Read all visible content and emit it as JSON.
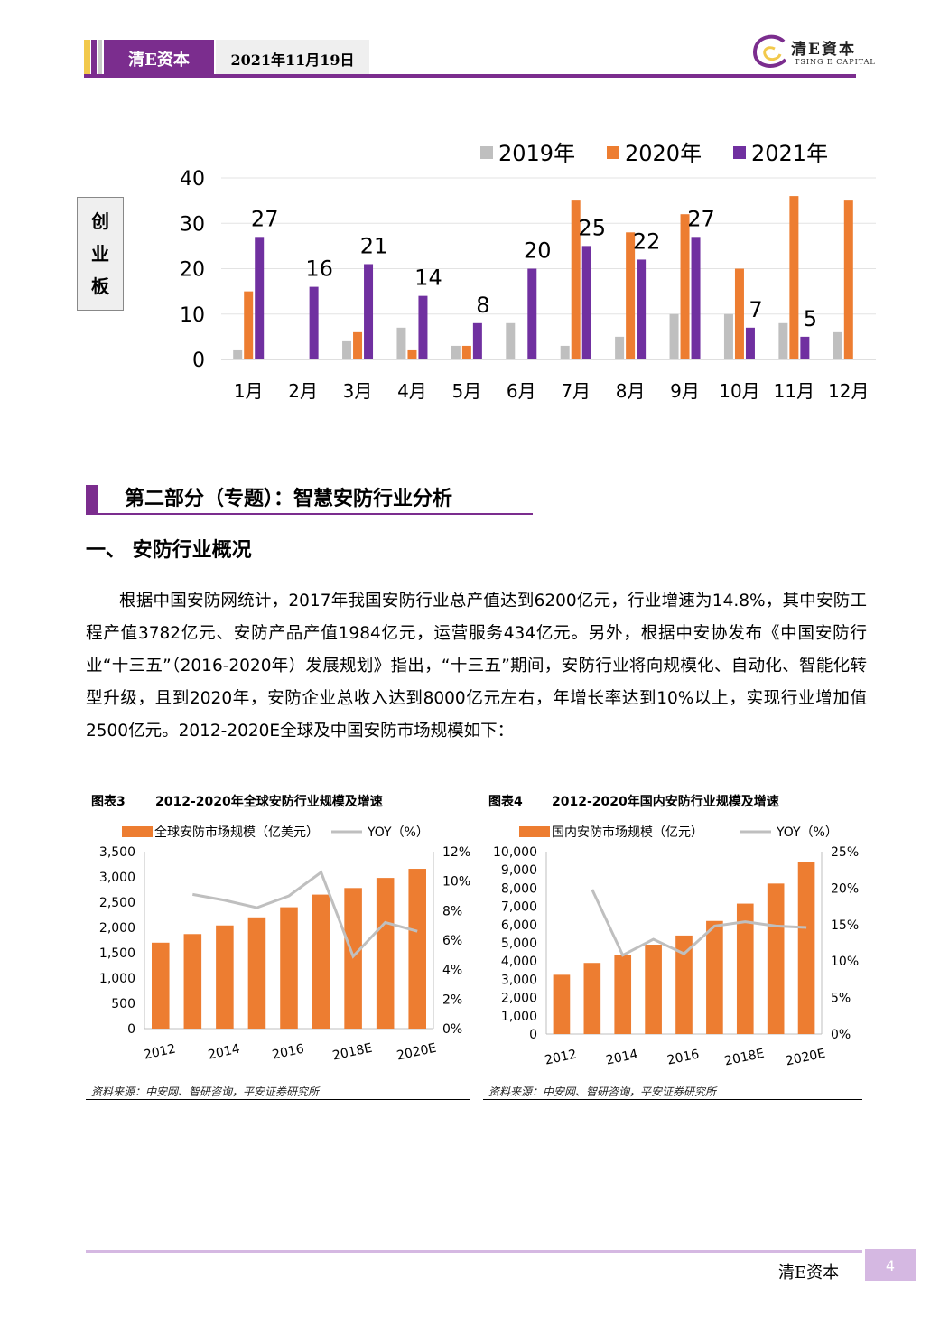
{
  "header": {
    "brand": "清E资本",
    "date": "2021年11月19日",
    "logo_cn": "清E資本",
    "logo_en": "TSING E CAPITAL"
  },
  "top_chart": {
    "side_label": [
      "创",
      "业",
      "板"
    ],
    "chart_data": {
      "type": "bar",
      "categories": [
        "1月",
        "2月",
        "3月",
        "4月",
        "5月",
        "6月",
        "7月",
        "8月",
        "9月",
        "10月",
        "11月",
        "12月"
      ],
      "series": [
        {
          "name": "2019年",
          "color": "#bfbfbf",
          "values": [
            2,
            0,
            4,
            7,
            3,
            8,
            3,
            5,
            10,
            10,
            8,
            6
          ]
        },
        {
          "name": "2020年",
          "color": "#ed7d31",
          "values": [
            15,
            0,
            6,
            2,
            3,
            0,
            35,
            28,
            32,
            20,
            36,
            35
          ]
        },
        {
          "name": "2021年",
          "color": "#7030a0",
          "values": [
            27,
            16,
            21,
            14,
            8,
            20,
            25,
            22,
            27,
            7,
            5,
            null
          ]
        }
      ],
      "data_labels_series": "2021年",
      "yticks": [
        0,
        10,
        20,
        30,
        40
      ],
      "ylim": [
        0,
        40
      ],
      "legend": "top-right",
      "grid": true
    }
  },
  "section": {
    "title": "第二部分（专题）：智慧安防行业分析",
    "subtitle": "一、  安防行业概况",
    "paragraph": "根据中国安防网统计，2017年我国安防行业总产值达到6200亿元，行业增速为14.8%，其中安防工程产值3782亿元、安防产品产值1984亿元，运营服务434亿元。另外，根据中安协发布《中国安防行业“十三五”（2016-2020年）发展规划》指出，“十三五”期间，安防行业将向规模化、自动化、智能化转型升级，且到2020年，安防企业总收入达到8000亿元左右，年增长率达到10%以上，实现行业增加值2500亿元。2012-2020E全球及中国安防市场规模如下："
  },
  "figures": [
    {
      "label": "图表3",
      "title": "2012-2020年全球安防行业规模及增速",
      "source": "资料来源：中安网、智研咨询，平安证券研究所",
      "chart_data": {
        "type": "bar",
        "categories": [
          "2012",
          "2013",
          "2014",
          "2015",
          "2016",
          "2017",
          "2018E",
          "2019E",
          "2020E"
        ],
        "xtick_labels": [
          "2012",
          "",
          "2014",
          "",
          "2016",
          "",
          "2018E",
          "",
          "2020E"
        ],
        "series": [
          {
            "name": "全球安防市场规模（亿美元）",
            "type": "bar",
            "color": "#ed7d31",
            "values": [
              1700,
              1870,
              2040,
              2200,
              2400,
              2650,
              2780,
              2980,
              3160
            ]
          },
          {
            "name": "YOY（%）",
            "type": "line",
            "color": "#bfbfbf",
            "axis": "right",
            "values": [
              null,
              9.1,
              8.7,
              8.2,
              9.0,
              10.6,
              4.9,
              7.2,
              6.6
            ]
          }
        ],
        "yticks_left": [
          "0",
          "500",
          "1,000",
          "1,500",
          "2,000",
          "2,500",
          "3,000",
          "3,500"
        ],
        "ylim_left": [
          0,
          3500
        ],
        "yticks_right": [
          "0%",
          "2%",
          "4%",
          "6%",
          "8%",
          "10%",
          "12%"
        ],
        "ylim_right": [
          0,
          12
        ],
        "legend": "top"
      }
    },
    {
      "label": "图表4",
      "title": "2012-2020年国内安防行业规模及增速",
      "source": "资料来源：中安网、智研咨询，平安证券研究所",
      "chart_data": {
        "type": "bar",
        "categories": [
          "2012",
          "2013",
          "2014",
          "2015",
          "2016",
          "2017",
          "2018E",
          "2019E",
          "2020E"
        ],
        "xtick_labels": [
          "2012",
          "",
          "2014",
          "",
          "2016",
          "",
          "2018E",
          "",
          "2020E"
        ],
        "series": [
          {
            "name": "国内安防市场规模（亿元）",
            "type": "bar",
            "color": "#ed7d31",
            "values": [
              3250,
              3900,
              4350,
              4900,
              5400,
              6200,
              7150,
              8250,
              9450
            ]
          },
          {
            "name": "YOY（%）",
            "type": "line",
            "color": "#bfbfbf",
            "axis": "right",
            "values": [
              null,
              19.8,
              10.8,
              13.0,
              11.0,
              14.8,
              15.4,
              14.8,
              14.6
            ]
          }
        ],
        "yticks_left": [
          "0",
          "1,000",
          "2,000",
          "3,000",
          "4,000",
          "5,000",
          "6,000",
          "7,000",
          "8,000",
          "9,000",
          "10,000"
        ],
        "ylim_left": [
          0,
          10000
        ],
        "yticks_right": [
          "0%",
          "5%",
          "10%",
          "15%",
          "20%",
          "25%"
        ],
        "ylim_right": [
          0,
          25
        ],
        "legend": "top"
      }
    }
  ],
  "footer": {
    "brand": "清E资本",
    "page": "4"
  }
}
